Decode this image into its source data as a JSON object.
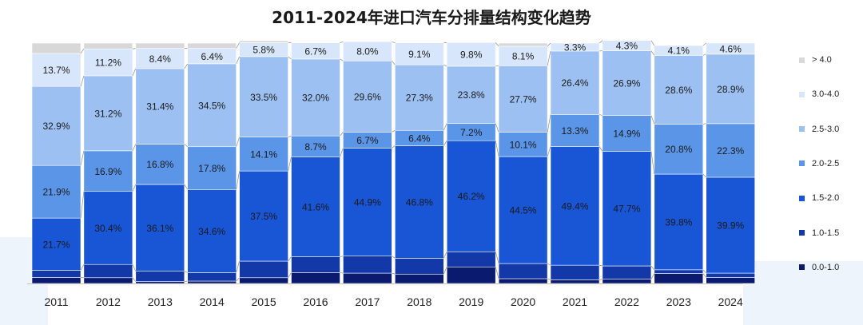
{
  "chart_data": {
    "type": "bar",
    "stacked": true,
    "normalized": true,
    "title": "2011-2024年进口汽车分排量结构变化趋势",
    "categories": [
      "2011",
      "2012",
      "2013",
      "2014",
      "2015",
      "2016",
      "2017",
      "2018",
      "2019",
      "2020",
      "2021",
      "2022",
      "2023",
      "2024"
    ],
    "ylim": [
      0,
      100
    ],
    "legend_position": "right",
    "series": [
      {
        "name": "0.0-1.0",
        "color": "#0a1a6e",
        "values": [
          2.5,
          2.4,
          0.8,
          1.0,
          2.4,
          4.5,
          4.3,
          3.9,
          6.9,
          2.0,
          1.5,
          1.8,
          4.2,
          2.5
        ]
      },
      {
        "name": "1.0-1.5",
        "color": "#1338a8",
        "values": [
          3.0,
          5.5,
          4.3,
          3.5,
          6.9,
          6.6,
          7.1,
          6.6,
          6.3,
          6.3,
          6.1,
          5.5,
          1.5,
          1.8
        ]
      },
      {
        "name": "1.5-2.0",
        "color": "#1956d6",
        "values": [
          21.7,
          30.4,
          36.1,
          34.6,
          37.5,
          41.6,
          44.9,
          46.8,
          46.2,
          44.5,
          49.4,
          47.7,
          39.8,
          39.9
        ]
      },
      {
        "name": "2.0-2.5",
        "color": "#5b95e8",
        "values": [
          21.9,
          16.9,
          16.8,
          17.8,
          14.1,
          8.7,
          6.7,
          6.4,
          7.2,
          10.1,
          13.3,
          14.9,
          20.8,
          22.3
        ]
      },
      {
        "name": "2.5-3.0",
        "color": "#9dc0f2",
        "values": [
          32.9,
          31.2,
          31.4,
          34.5,
          33.5,
          32.0,
          29.6,
          27.3,
          23.8,
          27.7,
          26.4,
          26.9,
          28.6,
          28.9
        ]
      },
      {
        "name": "3.0-4.0",
        "color": "#d7e6fa",
        "values": [
          13.7,
          11.2,
          8.4,
          6.4,
          5.8,
          6.7,
          8.0,
          9.1,
          9.8,
          8.1,
          3.3,
          4.3,
          4.1,
          4.6
        ]
      },
      {
        "name": "> 4.0",
        "color": "#d8d8d8",
        "values": [
          4.3,
          2.4,
          2.2,
          2.2,
          0.8,
          0.0,
          0.0,
          0.0,
          0.0,
          1.3,
          0.0,
          0.0,
          0.0,
          0.0
        ]
      }
    ],
    "data_labels": {
      "1.5-2.0": [
        "21.7%",
        "30.4%",
        "36.1%",
        "34.6%",
        "37.5%",
        "41.6%",
        "44.9%",
        "46.8%",
        "46.2%",
        "44.5%",
        "49.4%",
        "47.7%",
        "39.8%",
        "39.9%"
      ],
      "2.0-2.5": [
        "21.9%",
        "16.9%",
        "16.8%",
        "17.8%",
        "14.1%",
        "8.7%",
        "6.7%",
        "6.4%",
        "7.2%",
        "10.1%",
        "13.3%",
        "14.9%",
        "20.8%",
        "22.3%"
      ],
      "2.5-3.0": [
        "32.9%",
        "31.2%",
        "31.4%",
        "34.5%",
        "33.5%",
        "32.0%",
        "29.6%",
        "27.3%",
        "23.8%",
        "27.7%",
        "26.4%",
        "26.9%",
        "28.6%",
        "28.9%"
      ],
      "3.0-4.0": [
        "13.7%",
        "11.2%",
        "8.4%",
        "6.4%",
        "5.8%",
        "6.7%",
        "8.0%",
        "9.1%",
        "9.8%",
        "8.1%",
        "3.3%",
        "4.3%",
        "4.1%",
        "4.6%"
      ]
    }
  }
}
